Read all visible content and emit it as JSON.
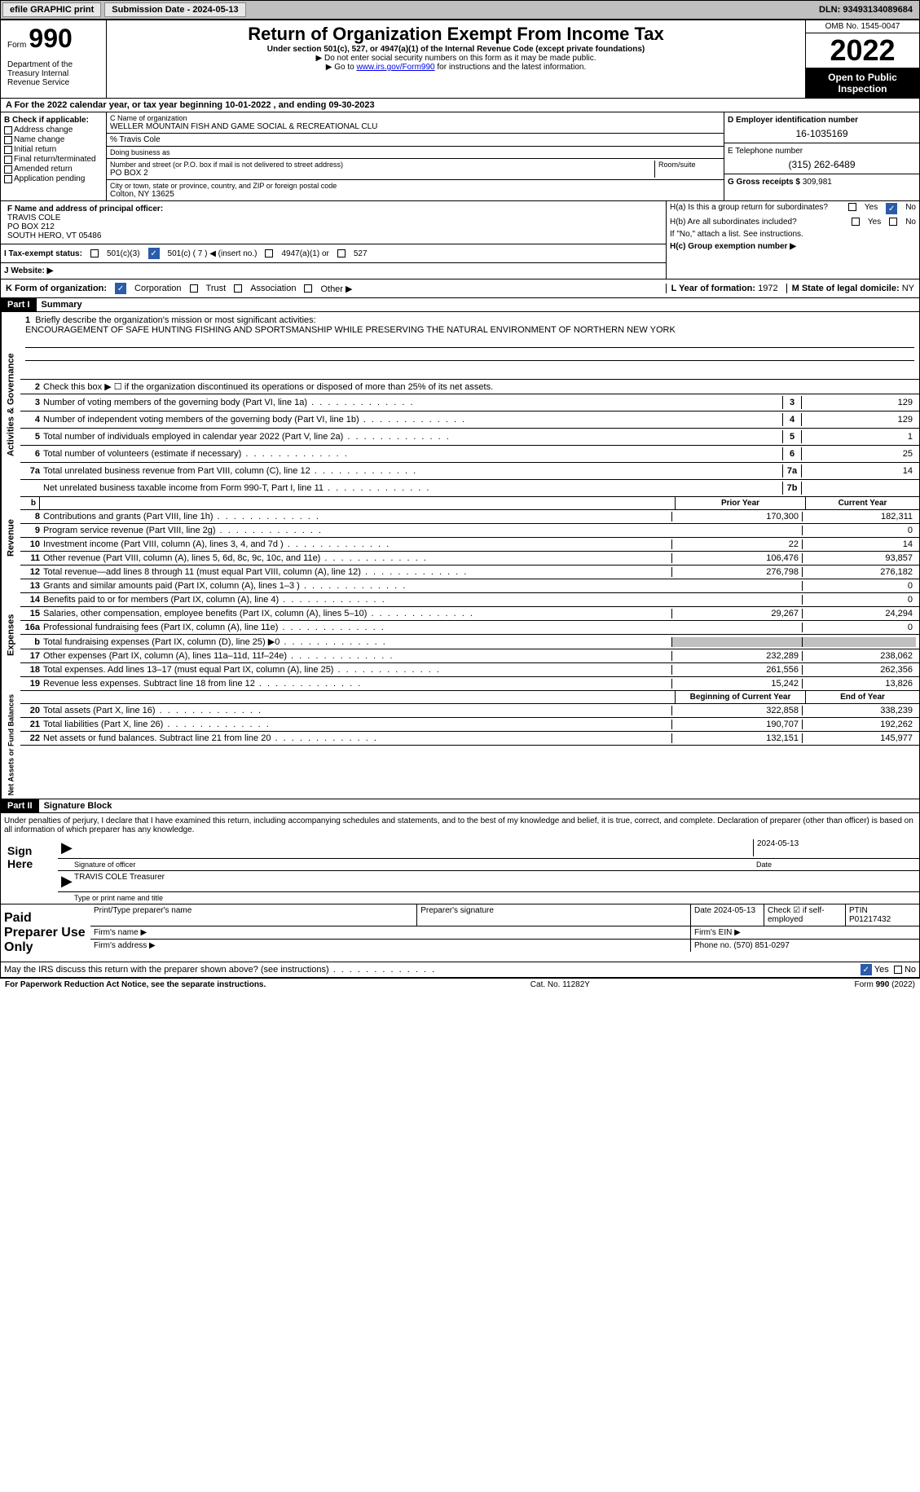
{
  "topbar": {
    "efile_label": "efile GRAPHIC print",
    "submission_label": "Submission Date - 2024-05-13",
    "dln_label": "DLN: 93493134089684"
  },
  "header": {
    "form_prefix": "Form",
    "form_number": "990",
    "title": "Return of Organization Exempt From Income Tax",
    "subtitle": "Under section 501(c), 527, or 4947(a)(1) of the Internal Revenue Code (except private foundations)",
    "note1": "▶ Do not enter social security numbers on this form as it may be made public.",
    "note2": "▶ Go to ",
    "link": "www.irs.gov/Form990",
    "note2_end": " for instructions and the latest information.",
    "omb": "OMB No. 1545-0047",
    "year": "2022",
    "open_pub": "Open to Public Inspection",
    "dept": "Department of the Treasury Internal Revenue Service"
  },
  "calendar": "A For the 2022 calendar year, or tax year beginning 10-01-2022   , and ending 09-30-2023",
  "section_b": {
    "header": "B Check if applicable:",
    "items": [
      "Address change",
      "Name change",
      "Initial return",
      "Final return/terminated",
      "Amended return",
      "Application pending"
    ]
  },
  "section_c": {
    "name_label": "C Name of organization",
    "name": "WELLER MOUNTAIN FISH AND GAME SOCIAL & RECREATIONAL CLU",
    "care_of": "% Travis Cole",
    "dba_label": "Doing business as",
    "street_label": "Number and street (or P.O. box if mail is not delivered to street address)",
    "room_label": "Room/suite",
    "street": "PO BOX 2",
    "city_label": "City or town, state or province, country, and ZIP or foreign postal code",
    "city": "Colton, NY  13625"
  },
  "section_d": {
    "label": "D Employer identification number",
    "value": "16-1035169",
    "phone_label": "E Telephone number",
    "phone": "(315) 262-6489",
    "gross_label": "G Gross receipts $",
    "gross": "309,981"
  },
  "section_f": {
    "label": "F Name and address of principal officer:",
    "name": "TRAVIS COLE",
    "addr1": "PO BOX 212",
    "addr2": "SOUTH HERO, VT  05486"
  },
  "section_h": {
    "ha": "H(a)  Is this a group return for subordinates?",
    "hb": "H(b)  Are all subordinates included?",
    "hb_note": "If \"No,\" attach a list. See instructions.",
    "hc": "H(c)  Group exemption number ▶",
    "yes": "Yes",
    "no": "No"
  },
  "tax_status": {
    "label": "I  Tax-exempt status:",
    "opt1": "501(c)(3)",
    "opt2": "501(c) ( 7 ) ◀ (insert no.)",
    "opt3": "4947(a)(1) or",
    "opt4": "527"
  },
  "website": {
    "label": "J  Website: ▶"
  },
  "section_k": {
    "label": "K Form of organization:",
    "corp": "Corporation",
    "trust": "Trust",
    "assoc": "Association",
    "other": "Other ▶",
    "l_label": "L Year of formation:",
    "l_val": "1972",
    "m_label": "M State of legal domicile:",
    "m_val": "NY"
  },
  "part1": {
    "header": "Part I",
    "title": "Summary",
    "line1_label": "Briefly describe the organization's mission or most significant activities:",
    "mission": "ENCOURAGEMENT OF SAFE HUNTING FISHING AND SPORTSMANSHIP WHILE PRESERVING THE NATURAL ENVIRONMENT OF NORTHERN NEW YORK",
    "line2": "Check this box ▶ ☐ if the organization discontinued its operations or disposed of more than 25% of its net assets.",
    "activities_label": "Activities & Governance",
    "revenue_label": "Revenue",
    "expenses_label": "Expenses",
    "netassets_label": "Net Assets or Fund Balances",
    "prior_year": "Prior Year",
    "current_year": "Current Year",
    "begin_year": "Beginning of Current Year",
    "end_year": "End of Year",
    "lines_gov": [
      {
        "n": "3",
        "t": "Number of voting members of the governing body (Part VI, line 1a)",
        "box": "3",
        "v": "129"
      },
      {
        "n": "4",
        "t": "Number of independent voting members of the governing body (Part VI, line 1b)",
        "box": "4",
        "v": "129"
      },
      {
        "n": "5",
        "t": "Total number of individuals employed in calendar year 2022 (Part V, line 2a)",
        "box": "5",
        "v": "1"
      },
      {
        "n": "6",
        "t": "Total number of volunteers (estimate if necessary)",
        "box": "6",
        "v": "25"
      },
      {
        "n": "7a",
        "t": "Total unrelated business revenue from Part VIII, column (C), line 12",
        "box": "7a",
        "v": "14"
      },
      {
        "n": "",
        "t": "Net unrelated business taxable income from Form 990-T, Part I, line 11",
        "box": "7b",
        "v": ""
      }
    ],
    "lines_rev": [
      {
        "n": "8",
        "t": "Contributions and grants (Part VIII, line 1h)",
        "p": "170,300",
        "c": "182,311"
      },
      {
        "n": "9",
        "t": "Program service revenue (Part VIII, line 2g)",
        "p": "",
        "c": "0"
      },
      {
        "n": "10",
        "t": "Investment income (Part VIII, column (A), lines 3, 4, and 7d )",
        "p": "22",
        "c": "14"
      },
      {
        "n": "11",
        "t": "Other revenue (Part VIII, column (A), lines 5, 6d, 8c, 9c, 10c, and 11e)",
        "p": "106,476",
        "c": "93,857"
      },
      {
        "n": "12",
        "t": "Total revenue—add lines 8 through 11 (must equal Part VIII, column (A), line 12)",
        "p": "276,798",
        "c": "276,182"
      }
    ],
    "lines_exp": [
      {
        "n": "13",
        "t": "Grants and similar amounts paid (Part IX, column (A), lines 1–3 )",
        "p": "",
        "c": "0"
      },
      {
        "n": "14",
        "t": "Benefits paid to or for members (Part IX, column (A), line 4)",
        "p": "",
        "c": "0"
      },
      {
        "n": "15",
        "t": "Salaries, other compensation, employee benefits (Part IX, column (A), lines 5–10)",
        "p": "29,267",
        "c": "24,294"
      },
      {
        "n": "16a",
        "t": "Professional fundraising fees (Part IX, column (A), line 11e)",
        "p": "",
        "c": "0"
      },
      {
        "n": "b",
        "t": "Total fundraising expenses (Part IX, column (D), line 25) ▶0",
        "p": "shaded",
        "c": "shaded"
      },
      {
        "n": "17",
        "t": "Other expenses (Part IX, column (A), lines 11a–11d, 11f–24e)",
        "p": "232,289",
        "c": "238,062"
      },
      {
        "n": "18",
        "t": "Total expenses. Add lines 13–17 (must equal Part IX, column (A), line 25)",
        "p": "261,556",
        "c": "262,356"
      },
      {
        "n": "19",
        "t": "Revenue less expenses. Subtract line 18 from line 12",
        "p": "15,242",
        "c": "13,826"
      }
    ],
    "lines_na": [
      {
        "n": "20",
        "t": "Total assets (Part X, line 16)",
        "p": "322,858",
        "c": "338,239"
      },
      {
        "n": "21",
        "t": "Total liabilities (Part X, line 26)",
        "p": "190,707",
        "c": "192,262"
      },
      {
        "n": "22",
        "t": "Net assets or fund balances. Subtract line 21 from line 20",
        "p": "132,151",
        "c": "145,977"
      }
    ]
  },
  "part2": {
    "header": "Part II",
    "title": "Signature Block",
    "penalty": "Under penalties of perjury, I declare that I have examined this return, including accompanying schedules and statements, and to the best of my knowledge and belief, it is true, correct, and complete. Declaration of preparer (other than officer) is based on all information of which preparer has any knowledge.",
    "sign_here": "Sign Here",
    "sig_officer": "Signature of officer",
    "sig_date": "2024-05-13",
    "date_label": "Date",
    "officer_name": "TRAVIS COLE Treasurer",
    "type_label": "Type or print name and title",
    "paid_prep": "Paid Preparer Use Only",
    "print_name": "Print/Type preparer's name",
    "prep_sig": "Preparer's signature",
    "date2": "Date 2024-05-13",
    "check_self": "Check ☑ if self-employed",
    "ptin_label": "PTIN",
    "ptin": "P01217432",
    "firm_name": "Firm's name    ▶",
    "firm_ein": "Firm's EIN ▶",
    "firm_addr": "Firm's address ▶",
    "phone_label": "Phone no.",
    "phone": "(570) 851-0297",
    "discuss": "May the IRS discuss this return with the preparer shown above? (see instructions)",
    "yes": "Yes",
    "no": "No"
  },
  "footer": {
    "notice": "For Paperwork Reduction Act Notice, see the separate instructions.",
    "cat": "Cat. No. 11282Y",
    "form": "Form 990 (2022)"
  }
}
